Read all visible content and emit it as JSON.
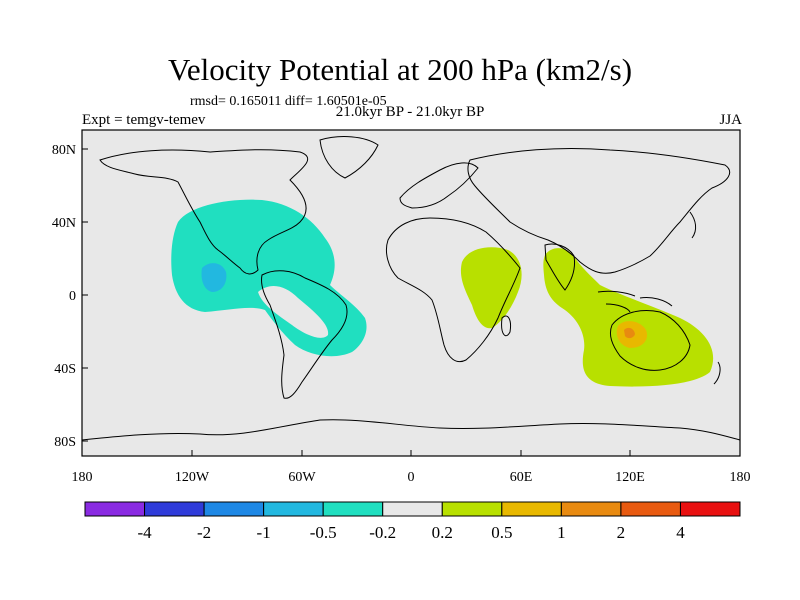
{
  "title": "Velocity Potential at 200 hPa (km2/s)",
  "stats": "rmsd= 0.165011 diff= 1.60501e-05",
  "experiment": "Expt = temgv-temev",
  "period": "21.0kyr BP - 21.0kyr BP",
  "season": "JJA",
  "axes": {
    "x_ticks": [
      "180",
      "120W",
      "60W",
      "0",
      "60E",
      "120E",
      "180"
    ],
    "y_ticks": [
      "80N",
      "40N",
      "0",
      "40S",
      "80S"
    ]
  },
  "colorbar": {
    "colors": [
      "#8a2be2",
      "#2f3bd9",
      "#1e88e5",
      "#22b8e0",
      "#20dfc0",
      "#e8e8e8",
      "#b8e000",
      "#e8b800",
      "#e88a10",
      "#e85a10",
      "#e81010"
    ],
    "labels": [
      "-4",
      "-2",
      "-1",
      "-0.5",
      "-0.2",
      "0.2",
      "0.5",
      "1",
      "2",
      "4"
    ]
  },
  "legend_colors": {
    "ocean_bg": "#e8e8e8",
    "neg_02": "#20dfc0",
    "neg_05": "#22b8e0",
    "pos_02": "#b8e000",
    "pos_05": "#e8b800",
    "pos_1": "#e88a10"
  }
}
